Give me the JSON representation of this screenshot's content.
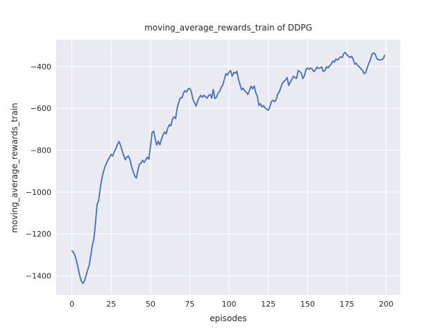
{
  "chart_data": {
    "type": "line",
    "title": "moving_average_rewards_train of DDPG",
    "xlabel": "episodes",
    "ylabel": "moving_average_rewards_train",
    "line_color": "#4c72b0",
    "axes_bg_color": "#eaeaf2",
    "grid_color": "#ffffff",
    "text_color": "#262626",
    "legend": "none",
    "grid": true,
    "xlim": [
      -10,
      209
    ],
    "ylim": [
      -1491,
      -271
    ],
    "xticks": {
      "values": [
        0,
        25,
        50,
        75,
        100,
        125,
        150,
        175,
        200
      ],
      "labels": [
        "0",
        "25",
        "50",
        "75",
        "100",
        "125",
        "150",
        "175",
        "200"
      ]
    },
    "yticks": {
      "values": [
        -400,
        -600,
        -800,
        -1000,
        -1200,
        -1400
      ],
      "labels": [
        "−400",
        "−600",
        "−800",
        "−1000",
        "−1200",
        "−1400"
      ]
    },
    "x_start": 0,
    "x_step": 1,
    "values": [
      -1280,
      -1288,
      -1305,
      -1330,
      -1365,
      -1400,
      -1425,
      -1437,
      -1424,
      -1400,
      -1372,
      -1350,
      -1305,
      -1255,
      -1222,
      -1150,
      -1060,
      -1040,
      -985,
      -938,
      -905,
      -880,
      -862,
      -846,
      -833,
      -820,
      -828,
      -806,
      -792,
      -772,
      -758,
      -778,
      -802,
      -826,
      -846,
      -832,
      -828,
      -846,
      -878,
      -902,
      -922,
      -933,
      -896,
      -866,
      -862,
      -848,
      -858,
      -846,
      -833,
      -843,
      -782,
      -716,
      -709,
      -745,
      -776,
      -757,
      -774,
      -748,
      -726,
      -713,
      -722,
      -694,
      -678,
      -683,
      -651,
      -640,
      -649,
      -598,
      -571,
      -549,
      -550,
      -527,
      -515,
      -521,
      -507,
      -504,
      -521,
      -556,
      -573,
      -589,
      -566,
      -549,
      -538,
      -547,
      -537,
      -545,
      -551,
      -539,
      -533,
      -551,
      -509,
      -553,
      -547,
      -527,
      -519,
      -500,
      -489,
      -462,
      -434,
      -441,
      -427,
      -420,
      -446,
      -428,
      -432,
      -423,
      -461,
      -486,
      -511,
      -504,
      -516,
      -523,
      -533,
      -514,
      -494,
      -506,
      -493,
      -524,
      -541,
      -586,
      -577,
      -593,
      -587,
      -598,
      -604,
      -609,
      -592,
      -567,
      -561,
      -568,
      -559,
      -531,
      -521,
      -499,
      -481,
      -471,
      -464,
      -453,
      -490,
      -474,
      -461,
      -447,
      -452,
      -457,
      -419,
      -424,
      -431,
      -457,
      -444,
      -414,
      -407,
      -413,
      -407,
      -413,
      -424,
      -417,
      -402,
      -409,
      -407,
      -402,
      -424,
      -419,
      -401,
      -407,
      -397,
      -389,
      -374,
      -379,
      -364,
      -369,
      -361,
      -354,
      -357,
      -339,
      -332,
      -344,
      -351,
      -357,
      -351,
      -364,
      -389,
      -384,
      -395,
      -402,
      -411,
      -419,
      -434,
      -429,
      -404,
      -384,
      -367,
      -341,
      -335,
      -341,
      -361,
      -367,
      -369,
      -367,
      -364,
      -347
    ]
  }
}
